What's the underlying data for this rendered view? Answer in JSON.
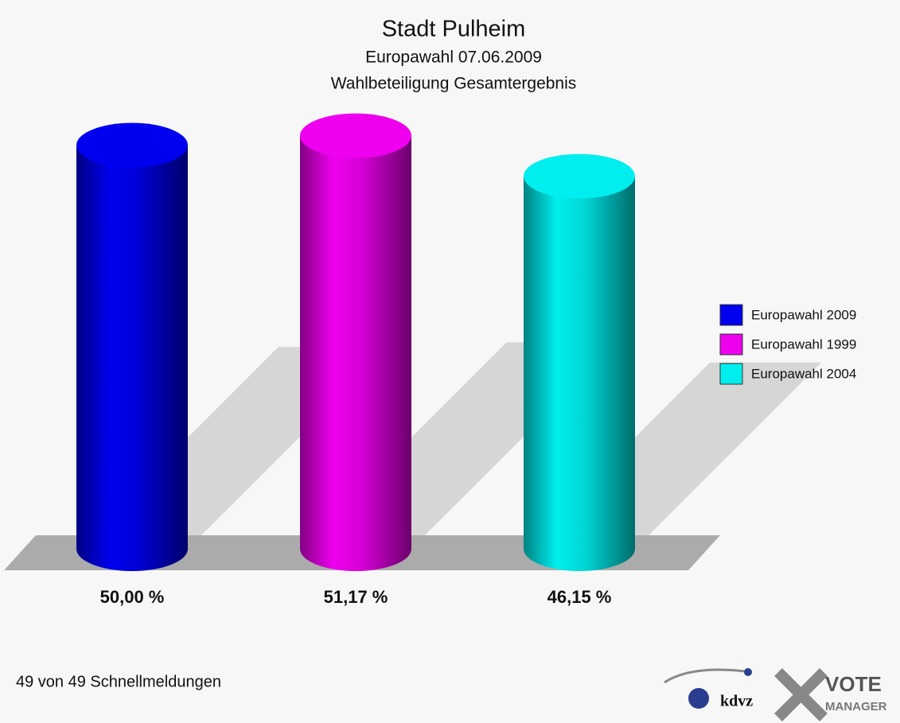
{
  "chart_data": {
    "type": "bar",
    "title": "Stadt Pulheim",
    "subtitle": [
      "Europawahl 07.06.2009",
      "Wahlbeteiligung Gesamtergebnis"
    ],
    "categories": [
      "Europawahl 2009",
      "Europawahl 1999",
      "Europawahl 2004"
    ],
    "values": [
      50.0,
      51.17,
      46.15
    ],
    "value_labels": [
      "50,00 %",
      "51,17 %",
      "46,15 %"
    ],
    "colors": [
      "#0000ee",
      "#ee00ee",
      "#00eeee"
    ],
    "legend": "right"
  },
  "footer": "49 von 49 Schnellmeldungen",
  "logo": {
    "left": "kdvz",
    "right": [
      "VOTE",
      "MANAGER"
    ]
  }
}
